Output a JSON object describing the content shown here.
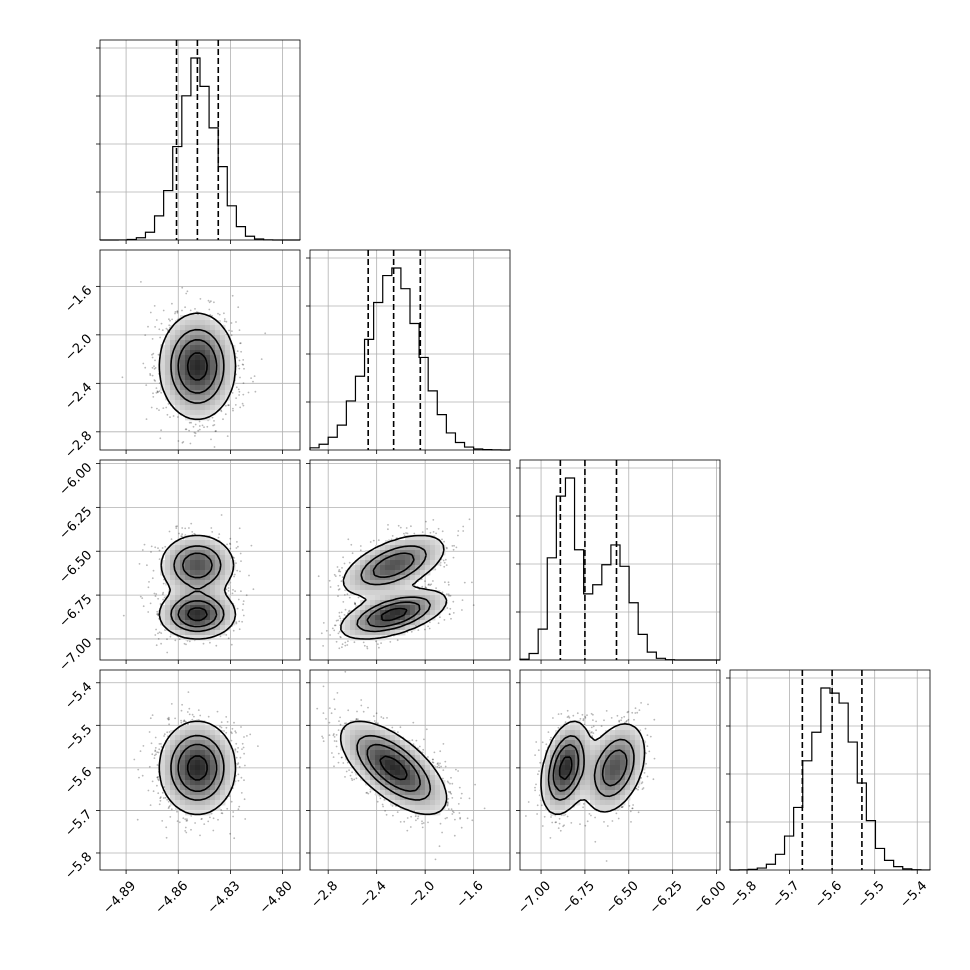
{
  "chart_data": {
    "type": "corner",
    "grid": true,
    "params": [
      {
        "range": [
          -4.905,
          -4.79
        ],
        "ticks": [
          -4.89,
          -4.86,
          -4.83,
          -4.8
        ],
        "tick_labels": [
          "−4.89",
          "−4.86",
          "−4.83",
          "−4.80"
        ],
        "mean": -4.849,
        "sd": 0.011,
        "quantiles": [
          -4.861,
          -4.849,
          -4.837
        ]
      },
      {
        "range": [
          -2.95,
          -1.3
        ],
        "ticks": [
          -2.8,
          -2.4,
          -2.0,
          -1.6
        ],
        "tick_labels": [
          "−2.8",
          "−2.4",
          "−2.0",
          "−1.6"
        ],
        "mean": -2.26,
        "sd": 0.22,
        "quantiles": [
          -2.47,
          -2.26,
          -2.04
        ]
      },
      {
        "range": [
          -7.12,
          -5.98
        ],
        "ticks": [
          -7.0,
          -6.75,
          -6.5,
          -6.25,
          -6.0
        ],
        "tick_labels": [
          "−7.00",
          "−6.75",
          "−6.50",
          "−6.25",
          "−6.00"
        ],
        "mean": -6.74,
        "sd": 0.15,
        "quantiles": [
          -6.89,
          -6.75,
          -6.57
        ],
        "modes": [
          {
            "center": -6.86,
            "sd": 0.07,
            "weight": 0.55
          },
          {
            "center": -6.58,
            "sd": 0.09,
            "weight": 0.45
          }
        ]
      },
      {
        "range": [
          -5.84,
          -5.37
        ],
        "ticks": [
          -5.8,
          -5.7,
          -5.6,
          -5.5,
          -5.4
        ],
        "tick_labels": [
          "−5.8",
          "−5.7",
          "−5.6",
          "−5.5",
          "−5.4"
        ],
        "mean": -5.6,
        "sd": 0.055,
        "quantiles": [
          -5.67,
          -5.6,
          -5.53
        ]
      }
    ],
    "correlations": {
      "1-2": 0.55,
      "1-3": -0.65,
      "2-3": 0.35
    },
    "hist_max": [
      0.255,
      0.28,
      0.245,
      0.25
    ]
  }
}
